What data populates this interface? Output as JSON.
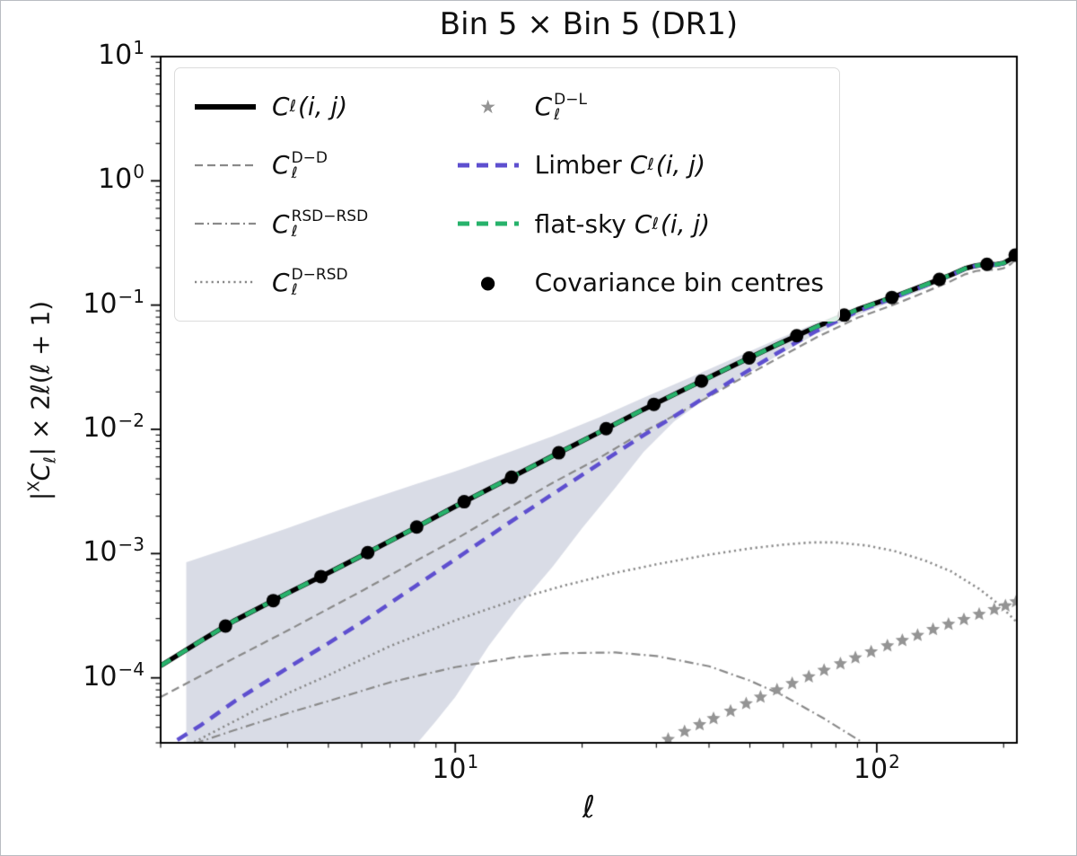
{
  "chart_data": {
    "type": "line",
    "title": "Bin 5 × Bin 5 (DR1)",
    "xlabel": "ℓ",
    "ylabel": "|ˣCℓ| × 2ℓ(ℓ + 1)",
    "ylabel_parts": {
      "bar": "|",
      "sup": "X",
      "base": "C",
      "sub": "ℓ",
      "rest": "| × 2ℓ(ℓ + 1)"
    },
    "xscale": "log",
    "yscale": "log",
    "xlim": [
      2,
      215
    ],
    "ylim": [
      3e-05,
      10
    ],
    "x_ticks": [
      10,
      100
    ],
    "y_ticks": [
      10,
      1,
      0.1,
      0.01,
      0.001,
      0.0001
    ],
    "grid": false,
    "legend_position": "upper left",
    "band": {
      "name": "covariance-uncertainty-band",
      "color": "rgba(154,164,188,0.38)",
      "upper": [
        [
          2.3,
          0.00085
        ],
        [
          3,
          0.00115
        ],
        [
          4,
          0.0016
        ],
        [
          5,
          0.0021
        ],
        [
          6,
          0.0026
        ],
        [
          8,
          0.0036
        ],
        [
          10,
          0.0046
        ],
        [
          13,
          0.0063
        ],
        [
          17,
          0.0088
        ],
        [
          22,
          0.0125
        ],
        [
          28,
          0.018
        ],
        [
          36,
          0.026
        ],
        [
          46,
          0.0375
        ],
        [
          58,
          0.053
        ],
        [
          72,
          0.072
        ],
        [
          90,
          0.097
        ],
        [
          110,
          0.122
        ],
        [
          130,
          0.151
        ],
        [
          150,
          0.183
        ],
        [
          162,
          0.205
        ],
        [
          172,
          0.216
        ],
        [
          182,
          0.221
        ],
        [
          192,
          0.22
        ],
        [
          200,
          0.226
        ],
        [
          208,
          0.243
        ],
        [
          215,
          0.268
        ]
      ],
      "lower": [
        [
          2.3,
          2e-05
        ],
        [
          5,
          2e-05
        ],
        [
          7,
          2.2e-05
        ],
        [
          8,
          2.8e-05
        ],
        [
          9,
          4.5e-05
        ],
        [
          10,
          7e-05
        ],
        [
          12,
          0.00018
        ],
        [
          14,
          0.00036
        ],
        [
          17,
          0.00078
        ],
        [
          20,
          0.0016
        ],
        [
          24,
          0.0034
        ],
        [
          28,
          0.0066
        ],
        [
          33,
          0.0115
        ],
        [
          40,
          0.0185
        ],
        [
          46,
          0.0245
        ],
        [
          58,
          0.039
        ],
        [
          72,
          0.059
        ],
        [
          90,
          0.083
        ],
        [
          110,
          0.108
        ],
        [
          130,
          0.135
        ],
        [
          150,
          0.167
        ],
        [
          162,
          0.189
        ],
        [
          172,
          0.2
        ],
        [
          182,
          0.205
        ],
        [
          192,
          0.204
        ],
        [
          200,
          0.21
        ],
        [
          208,
          0.227
        ],
        [
          215,
          0.252
        ]
      ]
    },
    "series": [
      {
        "key": "dd",
        "name": "Cl D-D",
        "type": "line",
        "color": "#8a8a8a",
        "width": 2.2,
        "dash": [
          9,
          5
        ],
        "points": [
          [
            2,
            7e-05
          ],
          [
            3,
            0.000145
          ],
          [
            4,
            0.00024
          ],
          [
            5,
            0.00036
          ],
          [
            6,
            0.0005
          ],
          [
            8,
            0.00086
          ],
          [
            10,
            0.0013
          ],
          [
            13,
            0.0022
          ],
          [
            17,
            0.0037
          ],
          [
            22,
            0.0059
          ],
          [
            28,
            0.0096
          ],
          [
            36,
            0.015
          ],
          [
            46,
            0.024
          ],
          [
            58,
            0.037
          ],
          [
            72,
            0.055
          ],
          [
            90,
            0.079
          ],
          [
            110,
            0.101
          ],
          [
            130,
            0.127
          ],
          [
            150,
            0.156
          ],
          [
            162,
            0.177
          ],
          [
            172,
            0.188
          ],
          [
            182,
            0.193
          ],
          [
            192,
            0.192
          ],
          [
            200,
            0.198
          ],
          [
            208,
            0.214
          ],
          [
            215,
            0.238
          ]
        ]
      },
      {
        "key": "rsd_rsd",
        "name": "Cl RSD-RSD",
        "type": "line",
        "color": "#8a8a8a",
        "width": 2.2,
        "dash": [
          10,
          4,
          2,
          4
        ],
        "points": [
          [
            2,
            2.4e-05
          ],
          [
            3,
            3.8e-05
          ],
          [
            4,
            5.2e-05
          ],
          [
            5,
            6.5e-05
          ],
          [
            7,
            9.2e-05
          ],
          [
            10,
            0.000122
          ],
          [
            14,
            0.000147
          ],
          [
            18,
            0.000158
          ],
          [
            24,
            0.00016
          ],
          [
            30,
            0.00015
          ],
          [
            40,
            0.000124
          ],
          [
            50,
            9.5e-05
          ],
          [
            60,
            7.2e-05
          ],
          [
            75,
            4.7e-05
          ],
          [
            90,
            3.2e-05
          ],
          [
            105,
            2.3e-05
          ]
        ]
      },
      {
        "key": "d_rsd",
        "name": "Cl D-RSD",
        "type": "line",
        "color": "#8a8a8a",
        "width": 2.6,
        "dash": [
          2.2,
          3.8
        ],
        "points": [
          [
            2,
            2.2e-05
          ],
          [
            3,
            4.5e-05
          ],
          [
            4,
            7.5e-05
          ],
          [
            5,
            0.000105
          ],
          [
            7,
            0.00018
          ],
          [
            10,
            0.00029
          ],
          [
            14,
            0.00043
          ],
          [
            18,
            0.00055
          ],
          [
            24,
            0.0007
          ],
          [
            30,
            0.00082
          ],
          [
            40,
            0.00098
          ],
          [
            50,
            0.0011
          ],
          [
            60,
            0.00118
          ],
          [
            70,
            0.00123
          ],
          [
            80,
            0.00123
          ],
          [
            95,
            0.00116
          ],
          [
            110,
            0.00105
          ],
          [
            130,
            0.00088
          ],
          [
            150,
            0.00072
          ],
          [
            175,
            0.00052
          ],
          [
            195,
            0.00039
          ],
          [
            215,
            0.00028
          ]
        ]
      },
      {
        "key": "d_l",
        "name": "Cl D-L",
        "type": "scatter",
        "color": "#949494",
        "marker": "star",
        "size": 8,
        "points": [
          [
            32,
            3.2e-05
          ],
          [
            35,
            3.7e-05
          ],
          [
            38,
            4.2e-05
          ],
          [
            41,
            4.7e-05
          ],
          [
            45,
            5.4e-05
          ],
          [
            49,
            6.2e-05
          ],
          [
            53,
            7e-05
          ],
          [
            58,
            8e-05
          ],
          [
            63,
            9e-05
          ],
          [
            69,
            0.000102
          ],
          [
            75,
            0.000115
          ],
          [
            82,
            0.00013
          ],
          [
            89,
            0.000145
          ],
          [
            97,
            0.000162
          ],
          [
            106,
            0.000181
          ],
          [
            115,
            0.0002
          ],
          [
            125,
            0.00022
          ],
          [
            136,
            0.000245
          ],
          [
            148,
            0.00027
          ],
          [
            161,
            0.000295
          ],
          [
            175,
            0.000325
          ],
          [
            190,
            0.000355
          ],
          [
            202,
            0.00038
          ],
          [
            214,
            0.00041
          ]
        ]
      },
      {
        "key": "cl",
        "name": "Cl(i,j)",
        "type": "line",
        "color": "#000000",
        "width": 5.5,
        "dash": [],
        "points": [
          [
            2,
            0.000125
          ],
          [
            2.5,
            0.0002
          ],
          [
            3,
            0.00029
          ],
          [
            4,
            0.00048
          ],
          [
            5,
            0.0007
          ],
          [
            6,
            0.00096
          ],
          [
            8,
            0.0016
          ],
          [
            10,
            0.0024
          ],
          [
            13,
            0.0038
          ],
          [
            17,
            0.0061
          ],
          [
            22,
            0.0095
          ],
          [
            28,
            0.0145
          ],
          [
            36,
            0.022
          ],
          [
            46,
            0.033
          ],
          [
            58,
            0.048
          ],
          [
            72,
            0.067
          ],
          [
            90,
            0.092
          ],
          [
            110,
            0.117
          ],
          [
            130,
            0.145
          ],
          [
            150,
            0.175
          ],
          [
            162,
            0.197
          ],
          [
            172,
            0.208
          ],
          [
            182,
            0.213
          ],
          [
            192,
            0.212
          ],
          [
            200,
            0.218
          ],
          [
            208,
            0.235
          ],
          [
            215,
            0.26
          ]
        ]
      },
      {
        "key": "limber",
        "name": "Limber Cl(i,j)",
        "type": "line",
        "color": "#5e4fcf",
        "width": 4.5,
        "dash": [
          13,
          9
        ],
        "points": [
          [
            2,
            2.6e-05
          ],
          [
            2.5,
            4.2e-05
          ],
          [
            3,
            6.5e-05
          ],
          [
            4,
            0.00012
          ],
          [
            5,
            0.00019
          ],
          [
            6,
            0.00028
          ],
          [
            8,
            0.00054
          ],
          [
            10,
            0.0009
          ],
          [
            13,
            0.00165
          ],
          [
            17,
            0.003
          ],
          [
            22,
            0.0053
          ],
          [
            28,
            0.009
          ],
          [
            36,
            0.0152
          ],
          [
            46,
            0.0255
          ],
          [
            58,
            0.041
          ],
          [
            72,
            0.062
          ],
          [
            90,
            0.089
          ],
          [
            110,
            0.115
          ],
          [
            130,
            0.143
          ],
          [
            150,
            0.174
          ],
          [
            162,
            0.196
          ],
          [
            172,
            0.207
          ],
          [
            182,
            0.212
          ],
          [
            192,
            0.211
          ],
          [
            200,
            0.217
          ],
          [
            208,
            0.234
          ],
          [
            215,
            0.259
          ]
        ]
      },
      {
        "key": "flat_sky",
        "name": "flat-sky Cl(i,j)",
        "type": "line",
        "color": "#27b26b",
        "width": 4.5,
        "dash": [
          13,
          9
        ],
        "points": [
          [
            2,
            0.000125
          ],
          [
            2.5,
            0.0002
          ],
          [
            3,
            0.00029
          ],
          [
            4,
            0.00048
          ],
          [
            5,
            0.0007
          ],
          [
            6,
            0.00096
          ],
          [
            8,
            0.0016
          ],
          [
            10,
            0.0024
          ],
          [
            13,
            0.0038
          ],
          [
            17,
            0.0061
          ],
          [
            22,
            0.0095
          ],
          [
            28,
            0.0145
          ],
          [
            36,
            0.022
          ],
          [
            46,
            0.033
          ],
          [
            58,
            0.048
          ],
          [
            72,
            0.067
          ],
          [
            90,
            0.092
          ],
          [
            110,
            0.117
          ],
          [
            130,
            0.145
          ],
          [
            150,
            0.175
          ],
          [
            162,
            0.197
          ],
          [
            172,
            0.208
          ],
          [
            182,
            0.213
          ],
          [
            192,
            0.212
          ],
          [
            200,
            0.218
          ],
          [
            208,
            0.235
          ],
          [
            215,
            0.26
          ]
        ]
      }
    ],
    "bin_centres": {
      "name": "Covariance bin centres",
      "marker": "circle",
      "color": "#000000",
      "size": 7.5,
      "l": [
        2.85,
        3.7,
        4.8,
        6.2,
        8.1,
        10.5,
        13.6,
        17.6,
        22.8,
        29.6,
        38.4,
        49.8,
        64.6,
        83.7,
        108.6,
        140.8,
        182.6,
        213
      ]
    },
    "legend": {
      "entries": [
        {
          "col": 0,
          "marker": "line",
          "color": "#000000",
          "width": 6,
          "dash": [],
          "label": {
            "base": "C",
            "sub": "ℓ",
            "suffix": "(i, j)"
          }
        },
        {
          "col": 0,
          "marker": "line",
          "color": "#8a8a8a",
          "width": 2.2,
          "dash": [
            9,
            5
          ],
          "label": {
            "base": "C",
            "sup": "D−D",
            "sub": "ℓ"
          }
        },
        {
          "col": 0,
          "marker": "line",
          "color": "#8a8a8a",
          "width": 2.2,
          "dash": [
            10,
            4,
            2,
            4
          ],
          "label": {
            "base": "C",
            "sup": "RSD−RSD",
            "sub": "ℓ"
          }
        },
        {
          "col": 0,
          "marker": "line",
          "color": "#8a8a8a",
          "width": 2.6,
          "dash": [
            2.2,
            4
          ],
          "label": {
            "base": "C",
            "sup": "D−RSD",
            "sub": "ℓ"
          }
        },
        {
          "col": 1,
          "marker": "star",
          "color": "#949494",
          "label": {
            "base": "C",
            "sup": "D−L",
            "sub": "ℓ"
          }
        },
        {
          "col": 1,
          "marker": "line",
          "color": "#5e4fcf",
          "width": 5,
          "dash": [
            13,
            8
          ],
          "label": {
            "prefix": "Limber",
            "base": "C",
            "sub": "ℓ",
            "suffix": "(i, j)"
          }
        },
        {
          "col": 1,
          "marker": "line",
          "color": "#27b26b",
          "width": 5,
          "dash": [
            13,
            8
          ],
          "label": {
            "prefix": "flat-sky",
            "base": "C",
            "sub": "ℓ",
            "suffix": "(i, j)"
          }
        },
        {
          "col": 1,
          "marker": "dot",
          "color": "#000000",
          "label": {
            "prefix": "Covariance bin centres"
          }
        }
      ]
    }
  }
}
